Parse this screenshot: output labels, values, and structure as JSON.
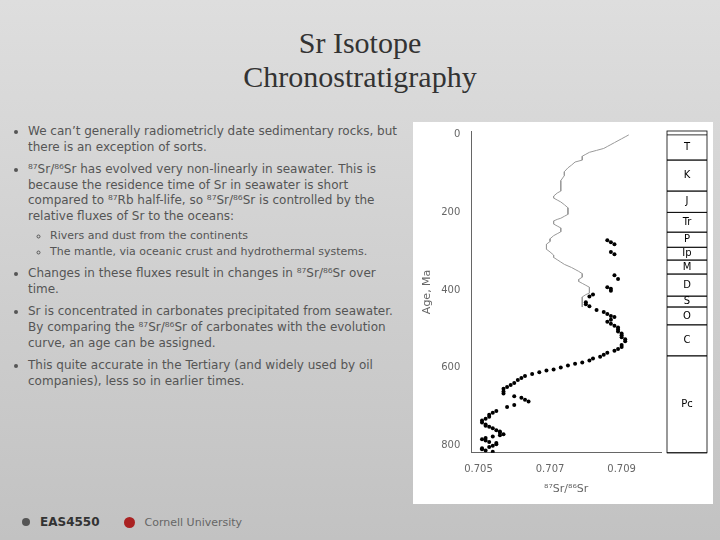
{
  "chart_data": {
    "type": "scatter",
    "title": [
      "Sr Isotope",
      "Chronostratigraphy"
    ],
    "xlabel": "⁸⁷Sr/⁸⁶Sr",
    "ylabel": "Age, Ma",
    "xlim": [
      0.7048,
      0.7101
    ],
    "xticks": [
      0.705,
      0.707,
      0.709
    ],
    "ylim": [
      820,
      -10
    ],
    "yticks": [
      0,
      200,
      400,
      600,
      800
    ],
    "grid": false,
    "series": [
      {
        "type": "line",
        "color": "#999999",
        "x": [
          0.7092,
          0.7091,
          0.709,
          0.7089,
          0.7088,
          0.7087,
          0.7086,
          0.7085,
          0.7083,
          0.7081,
          0.708,
          0.7079,
          0.7079,
          0.7079,
          0.7077,
          0.7076,
          0.7075,
          0.7074,
          0.7074,
          0.7073,
          0.7073,
          0.7073,
          0.7073,
          0.7072,
          0.7071,
          0.7071,
          0.7072,
          0.7073,
          0.7074,
          0.7075,
          0.7075,
          0.7075,
          0.7075,
          0.7074,
          0.7073,
          0.7072,
          0.7071,
          0.7071,
          0.7071,
          0.7072,
          0.7073,
          0.7073,
          0.7073,
          0.7072,
          0.7071,
          0.707,
          0.707,
          0.7069,
          0.7069,
          0.7069,
          0.707,
          0.7071,
          0.7071,
          0.7072,
          0.7073,
          0.7074,
          0.7076,
          0.7077,
          0.7078,
          0.7079,
          0.7079,
          0.7079,
          0.7078,
          0.7078,
          0.7079,
          0.708,
          0.7081,
          0.7081,
          0.7081,
          0.7081,
          0.708,
          0.7079,
          0.7079,
          0.7079,
          0.7079,
          0.7079,
          0.7079
        ],
        "values": [
          0,
          5,
          10,
          15,
          20,
          25,
          30,
          35,
          40,
          45,
          50,
          55,
          60,
          65,
          70,
          78,
          85,
          95,
          105,
          118,
          130,
          142,
          145,
          150,
          158,
          163,
          168,
          173,
          180,
          188,
          195,
          200,
          205,
          210,
          215,
          218,
          222,
          226,
          230,
          235,
          240,
          245,
          250,
          255,
          260,
          268,
          275,
          282,
          290,
          295,
          302,
          310,
          316,
          322,
          328,
          334,
          342,
          347,
          352,
          358,
          362,
          367,
          373,
          378,
          383,
          388,
          393,
          398,
          403,
          408,
          412,
          418,
          423,
          428,
          433,
          438,
          444
        ]
      },
      {
        "type": "scatter",
        "color": "#000000",
        "marker": "circle",
        "x": [
          0.7086,
          0.7087,
          0.7088,
          0.7087,
          0.7088,
          0.7088,
          0.7089,
          0.7086,
          0.7087,
          0.7087,
          0.7082,
          0.7081,
          0.708,
          0.708,
          0.7081,
          0.7083,
          0.7085,
          0.7086,
          0.7087,
          0.7088,
          0.7087,
          0.7086,
          0.7087,
          0.7088,
          0.7089,
          0.7089,
          0.7089,
          0.709,
          0.709,
          0.709,
          0.7091,
          0.7091,
          0.709,
          0.709,
          0.7089,
          0.7088,
          0.7086,
          0.7085,
          0.7084,
          0.7082,
          0.7081,
          0.7079,
          0.7077,
          0.7075,
          0.7073,
          0.7071,
          0.7069,
          0.7067,
          0.7065,
          0.7063,
          0.7062,
          0.7061,
          0.706,
          0.7059,
          0.7058,
          0.7057,
          0.7057,
          0.7057,
          0.706,
          0.7062,
          0.7063,
          0.7064,
          0.706,
          0.7058,
          0.7055,
          0.7054,
          0.7053,
          0.7053,
          0.7052,
          0.7051,
          0.7051,
          0.7052,
          0.7052,
          0.7053,
          0.7054,
          0.7055,
          0.7056,
          0.7056,
          0.7057,
          0.7056,
          0.7054,
          0.7052,
          0.7051,
          0.7052,
          0.7053,
          0.7055,
          0.7055,
          0.7054,
          0.7053,
          0.7051,
          0.7051,
          0.7052,
          0.7054
        ],
        "values": [
          272,
          277,
          282,
          302,
          308,
          362,
          372,
          393,
          397,
          402,
          412,
          417,
          432,
          437,
          442,
          452,
          457,
          462,
          467,
          470,
          477,
          482,
          487,
          492,
          497,
          502,
          507,
          512,
          517,
          522,
          527,
          532,
          542,
          547,
          552,
          557,
          562,
          567,
          572,
          577,
          582,
          587,
          590,
          595,
          600,
          605,
          608,
          612,
          617,
          622,
          627,
          632,
          640,
          645,
          650,
          655,
          662,
          667,
          674,
          678,
          683,
          688,
          697,
          702,
          712,
          717,
          722,
          727,
          732,
          737,
          742,
          747,
          750,
          753,
          757,
          762,
          765,
          768,
          772,
          775,
          778,
          782,
          785,
          788,
          792,
          795,
          798,
          802,
          805,
          808,
          811,
          814,
          817
        ]
      }
    ],
    "periods": [
      {
        "text": "T",
        "y_top": 0,
        "y_bot": 65
      },
      {
        "text": "K",
        "y_top": 65,
        "y_bot": 145
      },
      {
        "text": "J",
        "y_top": 145,
        "y_bot": 200
      },
      {
        "text": "Tr",
        "y_top": 200,
        "y_bot": 251
      },
      {
        "text": "P",
        "y_top": 251,
        "y_bot": 290
      },
      {
        "text": "Ip",
        "y_top": 290,
        "y_bot": 323
      },
      {
        "text": "M",
        "y_top": 323,
        "y_bot": 359
      },
      {
        "text": "D",
        "y_top": 359,
        "y_bot": 416
      },
      {
        "text": "S",
        "y_top": 416,
        "y_bot": 444
      },
      {
        "text": "O",
        "y_top": 444,
        "y_bot": 490
      },
      {
        "text": "C",
        "y_top": 490,
        "y_bot": 570
      },
      {
        "text": "Pc",
        "y_top": 570,
        "y_bot": 820
      }
    ],
    "notes": [
      {
        "text": "We can’t generally radiometricly date sedimentary rocks, but there is an exception of sorts."
      },
      {
        "text": "⁸⁷Sr/⁸⁶Sr has evolved very non-linearly in seawater. This is because the residence time of Sr in seawater is short compared to ⁸⁷Rb half-life, so ⁸⁷Sr/⁸⁶Sr is controlled by the relative fluxes of Sr to the oceans:",
        "items": [
          "Rivers and dust from the continents",
          "The mantle, via oceanic crust and hydrothermal systems."
        ]
      },
      {
        "text": "Changes in these fluxes result in changes in ⁸⁷Sr/⁸⁶Sr over time."
      },
      {
        "text": "Sr is concentrated in carbonates precipitated from seawater. By comparing the ⁸⁷Sr/⁸⁶Sr of carbonates with the evolution curve, an age can be assigned."
      },
      {
        "text": "This quite accurate in the Tertiary (and widely used by oil companies), less so in earlier times."
      }
    ],
    "footer": [
      "EAS4550",
      "Cornell University"
    ]
  }
}
